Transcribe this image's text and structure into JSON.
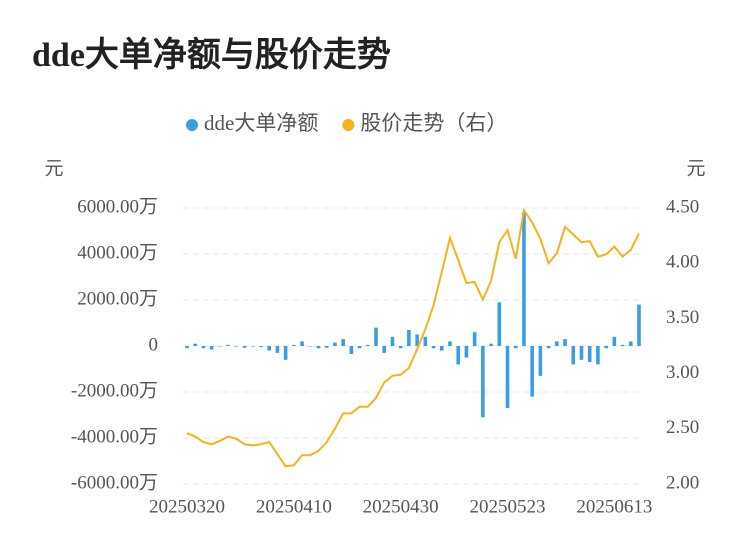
{
  "chart_data": {
    "type": "bar_line",
    "title": "dde大单净额与股价走势",
    "ylabel": "元",
    "y2label": "元",
    "categories": [
      "20250320",
      null,
      null,
      null,
      null,
      null,
      null,
      null,
      null,
      null,
      null,
      null,
      null,
      "20250410",
      null,
      null,
      null,
      null,
      null,
      null,
      null,
      null,
      null,
      null,
      null,
      null,
      "20250430",
      null,
      null,
      null,
      null,
      null,
      null,
      null,
      null,
      null,
      null,
      null,
      null,
      "20250523",
      null,
      null,
      null,
      null,
      null,
      null,
      null,
      null,
      null,
      null,
      null,
      null,
      "20250613",
      null,
      null,
      null
    ],
    "series": [
      {
        "name": "dde大单净额",
        "type": "bar",
        "color": "#3a9ee4",
        "axis": "y",
        "values": [
          -100,
          100,
          -100,
          -150,
          0,
          50,
          0,
          -80,
          0,
          -50,
          -200,
          -300,
          -600,
          50,
          200,
          0,
          -100,
          -80,
          150,
          300,
          -350,
          -100,
          50,
          800,
          -300,
          400,
          -100,
          700,
          500,
          400,
          -100,
          -200,
          200,
          -800,
          -500,
          600,
          -3100,
          100,
          1900,
          -2700,
          -100,
          5800,
          -2200,
          -1300,
          -100,
          200,
          300,
          -800,
          -600,
          -700,
          -800,
          -100,
          400,
          50,
          200,
          1800
        ]
      },
      {
        "name": "股价走势（右）",
        "type": "line",
        "color": "#f5b31b",
        "axis": "y2",
        "values": [
          2.46,
          2.43,
          2.38,
          2.36,
          2.39,
          2.43,
          2.41,
          2.36,
          2.35,
          2.36,
          2.38,
          2.27,
          2.16,
          2.17,
          2.26,
          2.26,
          2.3,
          2.38,
          2.5,
          2.64,
          2.64,
          2.7,
          2.7,
          2.78,
          2.92,
          2.98,
          2.99,
          3.05,
          3.22,
          3.4,
          3.62,
          3.92,
          4.23,
          4.03,
          3.82,
          3.83,
          3.67,
          3.84,
          4.19,
          4.3,
          4.04,
          4.48,
          4.37,
          4.22,
          4.0,
          4.09,
          4.33,
          4.26,
          4.19,
          4.2,
          4.06,
          4.08,
          4.15,
          4.06,
          4.12,
          4.27
        ]
      }
    ],
    "ylim": [
      -6000,
      6000
    ],
    "yticks": [
      {
        "value": -6000,
        "label": "-6000.00万"
      },
      {
        "value": -4000,
        "label": "-4000.00万"
      },
      {
        "value": -2000,
        "label": "-2000.00万"
      },
      0,
      {
        "value": 2000,
        "label": "2000.00万"
      },
      {
        "value": 4000,
        "label": "4000.00万"
      },
      {
        "value": 6000,
        "label": "6000.00万"
      }
    ],
    "y2lim": [
      2,
      4.5
    ],
    "y2ticks": [
      {
        "value": 2,
        "label": "2.00"
      },
      {
        "value": 2.5,
        "label": "2.50"
      },
      {
        "value": 3,
        "label": "3.00"
      },
      {
        "value": 3.5,
        "label": "3.50"
      },
      {
        "value": 4,
        "label": "4.00"
      },
      {
        "value": 4.5,
        "label": "4.50"
      }
    ],
    "grid": true,
    "legend": "top"
  }
}
